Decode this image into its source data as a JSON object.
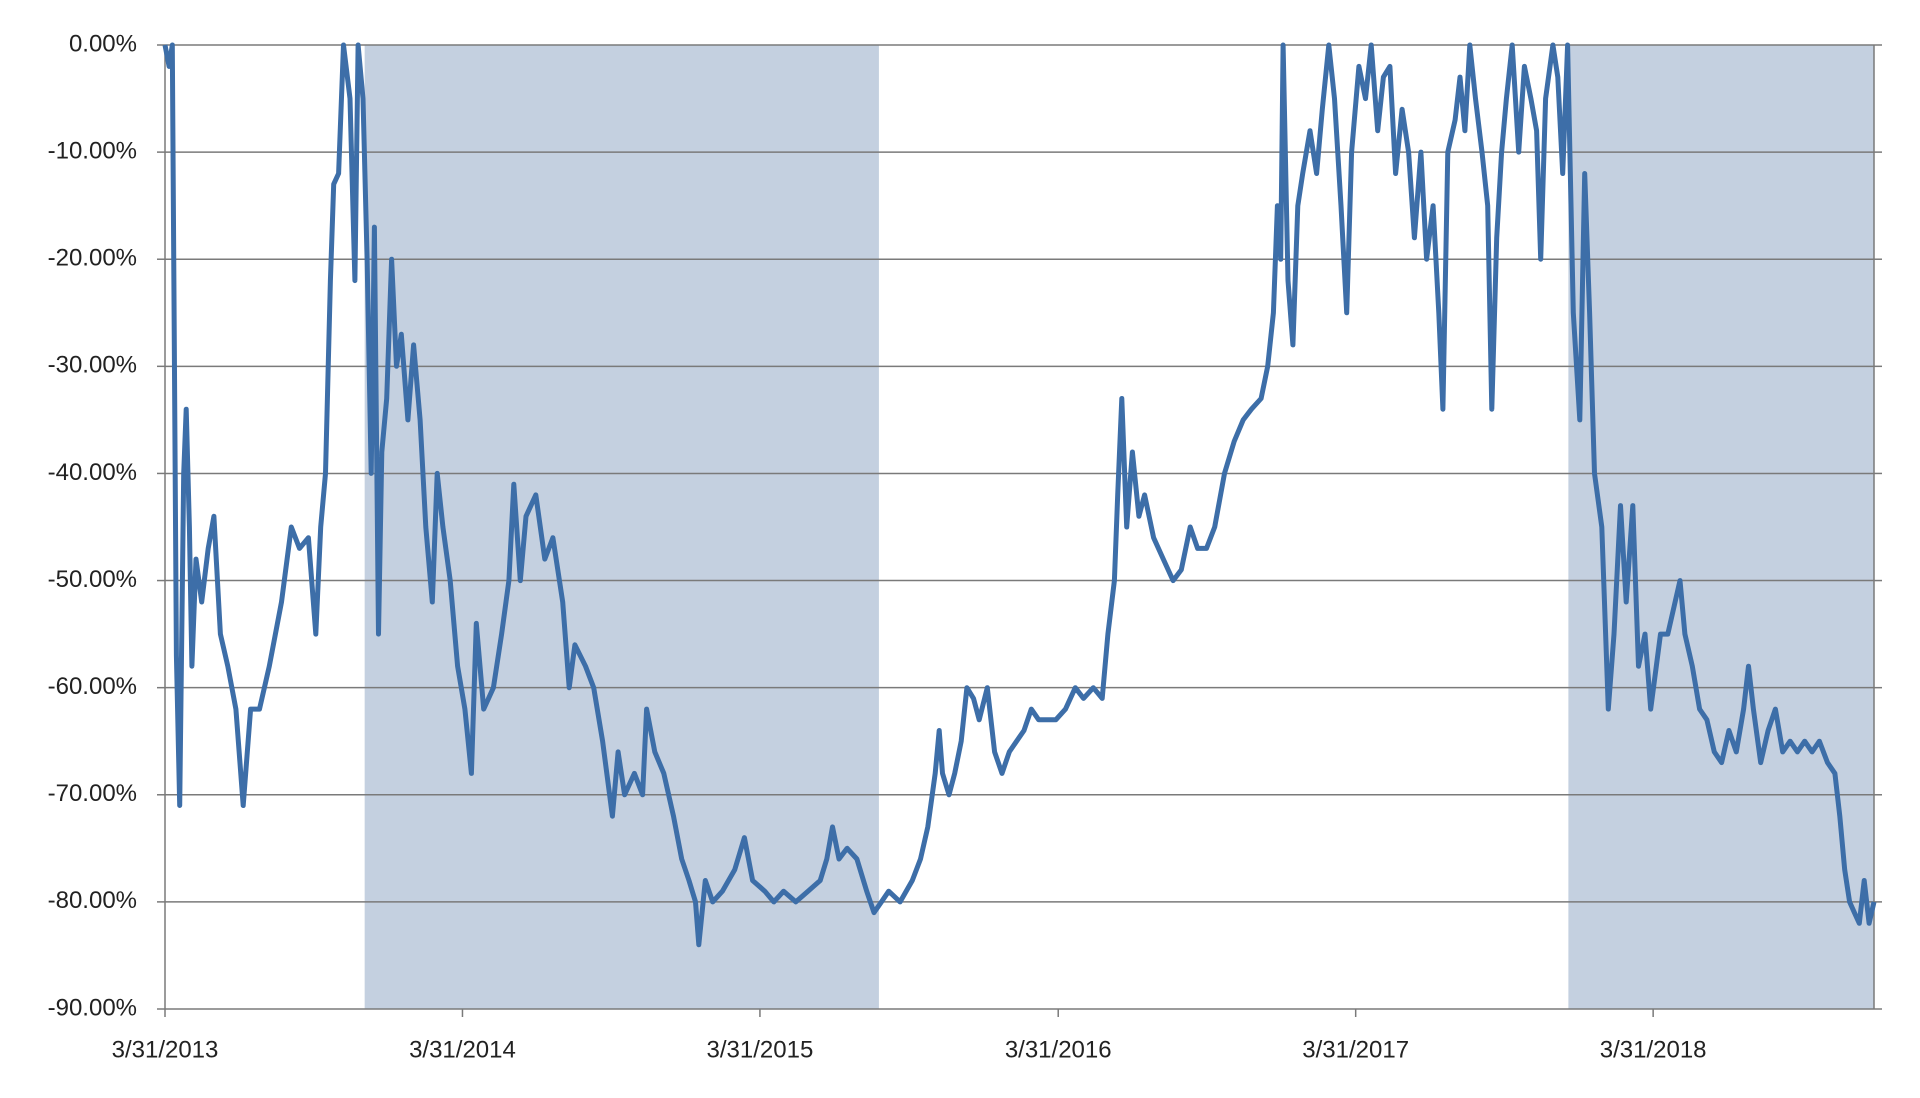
{
  "chart_data": {
    "type": "line",
    "x": [
      "2013-03-31",
      "2013-04-05",
      "2013-04-09",
      "2013-04-14",
      "2013-04-18",
      "2013-04-23",
      "2013-04-26",
      "2013-04-30",
      "2013-05-03",
      "2013-05-08",
      "2013-05-15",
      "2013-05-23",
      "2013-05-30",
      "2013-06-07",
      "2013-06-16",
      "2013-06-26",
      "2013-07-05",
      "2013-07-14",
      "2013-07-25",
      "2013-08-06",
      "2013-08-21",
      "2013-09-02",
      "2013-09-12",
      "2013-09-23",
      "2013-10-02",
      "2013-10-08",
      "2013-10-14",
      "2013-10-20",
      "2013-10-24",
      "2013-10-30",
      "2013-11-05",
      "2013-11-13",
      "2013-11-19",
      "2013-11-23",
      "2013-11-29",
      "2013-12-04",
      "2013-12-09",
      "2013-12-13",
      "2013-12-18",
      "2013-12-22",
      "2013-12-28",
      "2014-01-03",
      "2014-01-09",
      "2014-01-15",
      "2014-01-23",
      "2014-01-30",
      "2014-02-07",
      "2014-02-14",
      "2014-02-22",
      "2014-02-28",
      "2014-03-07",
      "2014-03-16",
      "2014-03-25",
      "2014-04-03",
      "2014-04-11",
      "2014-04-17",
      "2014-04-26",
      "2014-05-08",
      "2014-05-18",
      "2014-05-27",
      "2014-06-02",
      "2014-06-10",
      "2014-06-17",
      "2014-06-29",
      "2014-07-10",
      "2014-07-20",
      "2014-08-01",
      "2014-08-09",
      "2014-08-16",
      "2014-08-29",
      "2014-09-08",
      "2014-09-19",
      "2014-10-01",
      "2014-10-08",
      "2014-10-16",
      "2014-10-28",
      "2014-11-07",
      "2014-11-12",
      "2014-11-22",
      "2014-12-03",
      "2014-12-15",
      "2014-12-25",
      "2015-01-03",
      "2015-01-11",
      "2015-01-15",
      "2015-01-23",
      "2015-02-01",
      "2015-02-13",
      "2015-02-28",
      "2015-03-12",
      "2015-03-22",
      "2015-04-06",
      "2015-04-17",
      "2015-04-29",
      "2015-05-14",
      "2015-05-29",
      "2015-06-13",
      "2015-06-21",
      "2015-06-28",
      "2015-07-06",
      "2015-07-16",
      "2015-07-28",
      "2015-08-09",
      "2015-08-18",
      "2015-08-27",
      "2015-09-05",
      "2015-09-19",
      "2015-10-04",
      "2015-10-14",
      "2015-10-23",
      "2015-11-01",
      "2015-11-06",
      "2015-11-10",
      "2015-11-18",
      "2015-11-25",
      "2015-12-03",
      "2015-12-10",
      "2015-12-18",
      "2015-12-25",
      "2016-01-04",
      "2016-01-13",
      "2016-01-22",
      "2016-01-31",
      "2016-02-09",
      "2016-02-18",
      "2016-02-27",
      "2016-03-07",
      "2016-03-17",
      "2016-03-28",
      "2016-04-09",
      "2016-04-21",
      "2016-05-01",
      "2016-05-13",
      "2016-05-24",
      "2016-05-31",
      "2016-06-08",
      "2016-06-12",
      "2016-06-17",
      "2016-06-23",
      "2016-06-30",
      "2016-07-08",
      "2016-07-15",
      "2016-07-26",
      "2016-08-07",
      "2016-08-19",
      "2016-08-29",
      "2016-09-09",
      "2016-09-18",
      "2016-09-29",
      "2016-10-09",
      "2016-10-21",
      "2016-11-02",
      "2016-11-13",
      "2016-11-23",
      "2016-12-05",
      "2016-12-13",
      "2016-12-20",
      "2016-12-25",
      "2016-12-29",
      "2017-01-01",
      "2017-01-07",
      "2017-01-13",
      "2017-01-19",
      "2017-01-25",
      "2017-02-03",
      "2017-02-11",
      "2017-02-18",
      "2017-02-26",
      "2017-03-05",
      "2017-03-13",
      "2017-03-20",
      "2017-03-26",
      "2017-04-04",
      "2017-04-12",
      "2017-04-19",
      "2017-04-27",
      "2017-05-04",
      "2017-05-12",
      "2017-05-19",
      "2017-05-27",
      "2017-06-04",
      "2017-06-11",
      "2017-06-19",
      "2017-06-26",
      "2017-07-04",
      "2017-07-11",
      "2017-07-16",
      "2017-07-22",
      "2017-07-31",
      "2017-08-06",
      "2017-08-12",
      "2017-08-18",
      "2017-08-25",
      "2017-09-02",
      "2017-09-09",
      "2017-09-14",
      "2017-09-20",
      "2017-09-26",
      "2017-10-02",
      "2017-10-09",
      "2017-10-17",
      "2017-10-24",
      "2017-11-01",
      "2017-11-08",
      "2017-11-13",
      "2017-11-19",
      "2017-11-28",
      "2017-12-04",
      "2017-12-10",
      "2017-12-16",
      "2017-12-23",
      "2017-12-31",
      "2018-01-06",
      "2018-01-12",
      "2018-01-18",
      "2018-01-27",
      "2018-02-04",
      "2018-02-11",
      "2018-02-19",
      "2018-02-26",
      "2018-03-06",
      "2018-03-13",
      "2018-03-21",
      "2018-03-28",
      "2018-04-09",
      "2018-04-18",
      "2018-04-27",
      "2018-05-03",
      "2018-05-09",
      "2018-05-18",
      "2018-05-27",
      "2018-06-05",
      "2018-06-14",
      "2018-06-23",
      "2018-07-02",
      "2018-07-11",
      "2018-07-20",
      "2018-07-26",
      "2018-08-01",
      "2018-08-10",
      "2018-08-19",
      "2018-08-28",
      "2018-09-06",
      "2018-09-15",
      "2018-09-24",
      "2018-10-03",
      "2018-10-12",
      "2018-10-21",
      "2018-10-31",
      "2018-11-09",
      "2018-11-15",
      "2018-11-21",
      "2018-11-27",
      "2018-12-03",
      "2018-12-09",
      "2018-12-15",
      "2018-12-21",
      "2018-12-27"
    ],
    "values": [
      0,
      -2,
      0,
      -57,
      -71,
      -40,
      -34,
      -45,
      -58,
      -48,
      -52,
      -47,
      -44,
      -55,
      -58,
      -62,
      -71,
      -62,
      -62,
      -58,
      -52,
      -45,
      -47,
      -46,
      -55,
      -45,
      -40,
      -22,
      -13,
      -12,
      0,
      -5,
      -22,
      0,
      -5,
      -20,
      -40,
      -17,
      -55,
      -38,
      -33,
      -20,
      -30,
      -27,
      -35,
      -28,
      -35,
      -45,
      -52,
      -40,
      -45,
      -50,
      -58,
      -62,
      -68,
      -54,
      -62,
      -60,
      -55,
      -50,
      -41,
      -50,
      -44,
      -42,
      -48,
      -46,
      -52,
      -60,
      -56,
      -58,
      -60,
      -65,
      -72,
      -66,
      -70,
      -68,
      -70,
      -62,
      -66,
      -68,
      -72,
      -76,
      -78,
      -80,
      -84,
      -78,
      -80,
      -79,
      -77,
      -74,
      -78,
      -79,
      -80,
      -79,
      -80,
      -79,
      -78,
      -76,
      -73,
      -76,
      -75,
      -76,
      -79,
      -81,
      -80,
      -79,
      -80,
      -78,
      -76,
      -73,
      -68,
      -64,
      -68,
      -70,
      -68,
      -65,
      -60,
      -61,
      -63,
      -60,
      -66,
      -68,
      -66,
      -65,
      -64,
      -62,
      -63,
      -63,
      -63,
      -62,
      -60,
      -61,
      -60,
      -61,
      -55,
      -50,
      -42,
      -33,
      -45,
      -38,
      -44,
      -42,
      -46,
      -48,
      -50,
      -49,
      -45,
      -47,
      -47,
      -45,
      -40,
      -37,
      -35,
      -34,
      -33,
      -30,
      -25,
      -15,
      -20,
      0,
      -22,
      -28,
      -15,
      -12,
      -8,
      -12,
      -6,
      0,
      -5,
      -15,
      -25,
      -10,
      -2,
      -5,
      0,
      -8,
      -3,
      -2,
      -12,
      -6,
      -10,
      -18,
      -10,
      -20,
      -15,
      -25,
      -34,
      -10,
      -7,
      -3,
      -8,
      0,
      -5,
      -10,
      -15,
      -34,
      -18,
      -10,
      -5,
      0,
      -10,
      -2,
      -5,
      -8,
      -20,
      -5,
      0,
      -3,
      -12,
      0,
      -25,
      -35,
      -12,
      -25,
      -40,
      -45,
      -62,
      -55,
      -43,
      -52,
      -43,
      -58,
      -55,
      -62,
      -55,
      -55,
      -52,
      -50,
      -55,
      -58,
      -62,
      -63,
      -66,
      -67,
      -64,
      -66,
      -62,
      -58,
      -62,
      -67,
      -64,
      -62,
      -66,
      -65,
      -66,
      -65,
      -66,
      -65,
      -67,
      -68,
      -72,
      -77,
      -80,
      -81,
      -82,
      -78,
      -82,
      -80
    ],
    "color": "#3d6ea8",
    "shaded_ranges": [
      [
        "2013-12-01",
        "2015-08-24"
      ],
      [
        "2017-12-17",
        "2018-12-27"
      ]
    ],
    "shade_color": "#c4d0e0",
    "xlim": [
      "2013-03-31",
      "2018-12-27"
    ],
    "xticks": [
      {
        "value": "2013-03-31",
        "label": "3/31/2013"
      },
      {
        "value": "2014-03-31",
        "label": "3/31/2014"
      },
      {
        "value": "2015-03-31",
        "label": "3/31/2015"
      },
      {
        "value": "2016-03-31",
        "label": "3/31/2016"
      },
      {
        "value": "2017-03-31",
        "label": "3/31/2017"
      },
      {
        "value": "2018-03-31",
        "label": "3/31/2018"
      }
    ],
    "ylim": [
      -90,
      0
    ],
    "yticks": [
      {
        "value": 0,
        "label": "0.00%"
      },
      {
        "value": -10,
        "label": "-10.00%"
      },
      {
        "value": -20,
        "label": "-20.00%"
      },
      {
        "value": -30,
        "label": "-30.00%"
      },
      {
        "value": -40,
        "label": "-40.00%"
      },
      {
        "value": -50,
        "label": "-50.00%"
      },
      {
        "value": -60,
        "label": "-60.00%"
      },
      {
        "value": -70,
        "label": "-70.00%"
      },
      {
        "value": -80,
        "label": "-80.00%"
      },
      {
        "value": -90,
        "label": "-90.00%"
      }
    ],
    "grid": true
  }
}
